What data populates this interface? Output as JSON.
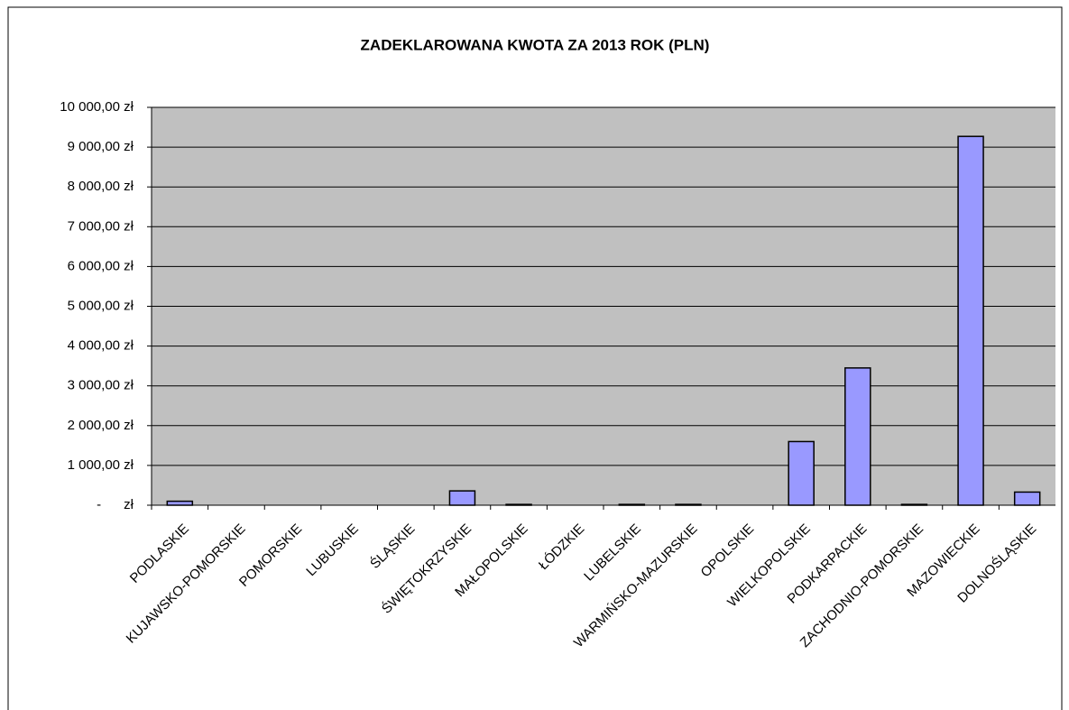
{
  "chart_data": {
    "type": "bar",
    "title": "ZADEKLAROWANA KWOTA ZA 2013 ROK (PLN)",
    "categories": [
      "PODLASKIE",
      "KUJAWSKO-POMORSKIE",
      "POMORSKIE",
      "LUBUSKIE",
      "ŚLĄSKIE",
      "ŚWIĘTOKRZYSKIE",
      "MAŁOPOLSKIE",
      "ŁÓDZKIE",
      "LUBELSKIE",
      "WARMIŃSKO-MAZURSKIE",
      "OPOLSKIE",
      "WIELKOPOLSKIE",
      "PODKARPACKIE",
      "ZACHODNIO-POMORSKIE",
      "MAZOWIECKIE",
      "DOLNOŚLĄSKIE"
    ],
    "values": [
      100,
      0,
      0,
      0,
      0,
      360,
      20,
      0,
      20,
      20,
      0,
      1600,
      3450,
      20,
      9270,
      330
    ],
    "color": "#9999ff",
    "ylim": [
      0,
      10000
    ],
    "yticks": [
      {
        "value": 0,
        "label": "-      zł"
      },
      {
        "value": 1000,
        "label": "1 000,00 zł"
      },
      {
        "value": 2000,
        "label": "2 000,00 zł"
      },
      {
        "value": 3000,
        "label": "3 000,00 zł"
      },
      {
        "value": 4000,
        "label": "4 000,00 zł"
      },
      {
        "value": 5000,
        "label": "5 000,00 zł"
      },
      {
        "value": 6000,
        "label": "6 000,00 zł"
      },
      {
        "value": 7000,
        "label": "7 000,00 zł"
      },
      {
        "value": 8000,
        "label": "8 000,00 zł"
      },
      {
        "value": 9000,
        "label": "9 000,00 zł"
      },
      {
        "value": 10000,
        "label": "10 000,00 zł"
      }
    ],
    "grid": true
  }
}
